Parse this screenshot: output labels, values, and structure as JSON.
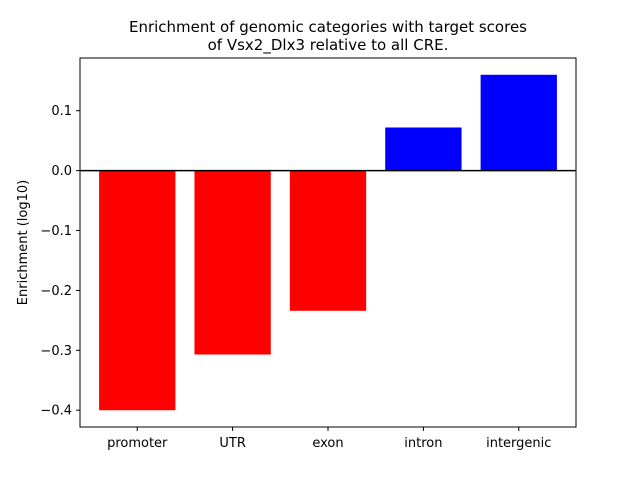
{
  "chart_data": {
    "type": "bar",
    "title_line1": "Enrichment of genomic categories with target scores",
    "title_line2": "of Vsx2_Dlx3 relative to all CRE.",
    "xlabel": "",
    "ylabel": "Enrichment (log10)",
    "categories": [
      "promoter",
      "UTR",
      "exon",
      "intron",
      "intergenic"
    ],
    "values": [
      -0.4,
      -0.307,
      -0.234,
      0.072,
      0.16
    ],
    "bar_colors": [
      "#ff0000",
      "#ff0000",
      "#ff0000",
      "#0000ff",
      "#0000ff"
    ],
    "ylim": [
      -0.428,
      0.188
    ],
    "yticks": [
      -0.4,
      -0.3,
      -0.2,
      -0.1,
      0.0,
      0.1
    ],
    "ytick_labels": [
      "−0.4",
      "−0.3",
      "−0.2",
      "−0.1",
      "0.0",
      "0.1"
    ],
    "zero_line": true,
    "grid": false
  }
}
